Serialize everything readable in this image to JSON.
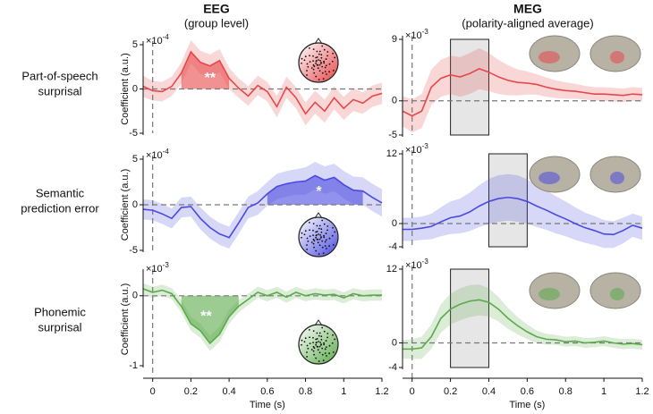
{
  "figure": {
    "columns": [
      {
        "title": "EEG",
        "subtitle": "(group level)"
      },
      {
        "title": "MEG",
        "subtitle": "(polarity-aligned average)"
      }
    ],
    "rows": [
      [
        "Part-of-speech",
        "surprisal"
      ],
      [
        "Semantic",
        "prediction error"
      ],
      [
        "Phonemic",
        "surprisal"
      ]
    ]
  },
  "chart_data": [
    {
      "type": "line",
      "ylabel": "Coefficient (a.u.)",
      "y_multiplier": {
        "base": "×10",
        "exponent": "-4"
      },
      "x": [
        -0.05,
        0,
        0.05,
        0.1,
        0.15,
        0.2,
        0.25,
        0.3,
        0.35,
        0.4,
        0.45,
        0.5,
        0.55,
        0.6,
        0.65,
        0.7,
        0.75,
        0.8,
        0.85,
        0.9,
        0.95,
        1.0,
        1.05,
        1.1,
        1.15,
        1.2
      ],
      "series": [
        {
          "color": "#e8474a",
          "values": [
            0.3,
            -0.2,
            -0.3,
            0.3,
            1.8,
            4.2,
            3.0,
            2.6,
            3.2,
            1.2,
            0.1,
            -0.8,
            0.4,
            -0.3,
            -2.0,
            0.2,
            -1.0,
            -2.8,
            -1.5,
            -2.5,
            -1.0,
            -2.2,
            -1.2,
            -1.6,
            -0.8,
            -0.5
          ],
          "errors": [
            1.2,
            1.1,
            1.1,
            1.1,
            1.2,
            1.3,
            1.3,
            1.3,
            1.3,
            1.2,
            1.1,
            1.1,
            1.1,
            1.1,
            1.2,
            1.2,
            1.2,
            1.3,
            1.3,
            1.3,
            1.3,
            1.3,
            1.3,
            1.2,
            1.2,
            1.2
          ]
        }
      ],
      "xlim": [
        -0.05,
        1.2
      ],
      "ylim": [
        -5,
        5
      ],
      "yticks": [
        -5,
        0,
        5
      ],
      "zero_lines": true,
      "highlight": [
        0.15,
        0.42
      ],
      "annotations": [
        {
          "text": "**",
          "x": 0.3,
          "y": 1.2
        }
      ]
    },
    {
      "type": "line",
      "y_multiplier": {
        "base": "×10",
        "exponent": "-3"
      },
      "x": [
        -0.05,
        0,
        0.05,
        0.1,
        0.15,
        0.2,
        0.25,
        0.3,
        0.35,
        0.4,
        0.45,
        0.5,
        0.55,
        0.6,
        0.65,
        0.7,
        0.75,
        0.8,
        0.85,
        0.9,
        0.95,
        1.0,
        1.05,
        1.1,
        1.15,
        1.2
      ],
      "series": [
        {
          "color": "#e8474a",
          "values": [
            -1.5,
            -2.2,
            -1.5,
            2.0,
            3.3,
            3.8,
            3.5,
            4.0,
            4.7,
            4.2,
            3.5,
            3.0,
            2.7,
            2.6,
            2.4,
            2.0,
            1.7,
            1.5,
            1.4,
            1.2,
            1.0,
            1.0,
            0.9,
            0.8,
            1.0,
            0.9
          ],
          "errors": [
            2.2,
            2.4,
            2.5,
            2.6,
            2.7,
            2.8,
            2.9,
            3.0,
            3.0,
            2.8,
            2.5,
            2.2,
            1.9,
            1.7,
            1.5,
            1.4,
            1.3,
            1.2,
            1.1,
            1.0,
            1.0,
            1.0,
            1.0,
            1.0,
            1.0,
            1.0
          ]
        }
      ],
      "xlim": [
        -0.05,
        1.2
      ],
      "ylim": [
        -5,
        9
      ],
      "yticks": [
        -5,
        0,
        9
      ],
      "zero_lines": true,
      "window": [
        0.2,
        0.4
      ]
    },
    {
      "type": "line",
      "ylabel": "Coefficient (a.u.)",
      "y_multiplier": {
        "base": "×10",
        "exponent": "-4"
      },
      "x": [
        -0.05,
        0,
        0.05,
        0.1,
        0.15,
        0.2,
        0.25,
        0.3,
        0.35,
        0.4,
        0.45,
        0.5,
        0.55,
        0.6,
        0.65,
        0.7,
        0.75,
        0.8,
        0.85,
        0.9,
        0.95,
        1.0,
        1.05,
        1.1,
        1.15,
        1.2
      ],
      "series": [
        {
          "color": "#4a4ae0",
          "values": [
            -0.5,
            -0.6,
            -1.0,
            -1.5,
            -0.3,
            -0.2,
            -1.5,
            -2.5,
            -3.2,
            -3.6,
            -2.0,
            -0.3,
            0.2,
            1.2,
            2.0,
            2.3,
            2.5,
            2.6,
            3.2,
            2.7,
            3.0,
            2.2,
            1.6,
            1.5,
            0.8,
            0.2
          ],
          "errors": [
            1.1,
            1.1,
            1.1,
            1.1,
            1.1,
            1.1,
            1.2,
            1.2,
            1.2,
            1.2,
            1.2,
            1.2,
            1.3,
            1.3,
            1.4,
            1.4,
            1.4,
            1.5,
            1.5,
            1.5,
            1.5,
            1.5,
            1.5,
            1.5,
            1.5,
            1.5
          ]
        }
      ],
      "xlim": [
        -0.05,
        1.2
      ],
      "ylim": [
        -5,
        5
      ],
      "yticks": [
        -5,
        0,
        5
      ],
      "zero_lines": true,
      "highlight": [
        0.57,
        1.1
      ],
      "annotations": [
        {
          "text": "*",
          "x": 0.87,
          "y": 1.4
        }
      ]
    },
    {
      "type": "line",
      "y_multiplier": {
        "base": "×10",
        "exponent": "-3"
      },
      "x": [
        -0.05,
        0,
        0.05,
        0.1,
        0.15,
        0.2,
        0.25,
        0.3,
        0.35,
        0.4,
        0.45,
        0.5,
        0.55,
        0.6,
        0.65,
        0.7,
        0.75,
        0.8,
        0.85,
        0.9,
        0.95,
        1.0,
        1.05,
        1.1,
        1.15,
        1.2
      ],
      "series": [
        {
          "color": "#4a4ae0",
          "values": [
            -1.0,
            -1.0,
            -0.8,
            -0.5,
            0.3,
            1.0,
            1.3,
            2.0,
            3.0,
            3.8,
            4.3,
            4.5,
            4.3,
            3.8,
            3.0,
            2.3,
            1.5,
            0.8,
            0.0,
            -0.7,
            -1.2,
            -1.8,
            -1.9,
            -1.2,
            -0.3,
            -0.8
          ],
          "errors": [
            2.0,
            2.0,
            2.0,
            2.2,
            2.5,
            2.8,
            3.0,
            3.3,
            3.6,
            3.9,
            4.0,
            4.0,
            4.0,
            3.8,
            3.6,
            3.4,
            3.2,
            3.0,
            2.8,
            2.6,
            2.5,
            2.4,
            2.3,
            2.2,
            2.0,
            2.0
          ]
        }
      ],
      "xlim": [
        -0.05,
        1.2
      ],
      "ylim": [
        -4,
        12
      ],
      "yticks": [
        -4,
        0,
        12
      ],
      "zero_lines": true,
      "window": [
        0.4,
        0.6
      ]
    },
    {
      "type": "line",
      "ylabel": "Coefficient (a.u.)",
      "xlabel": "Time (s)",
      "y_multiplier": {
        "base": "×10",
        "exponent": "-3"
      },
      "x": [
        -0.05,
        0,
        0.05,
        0.1,
        0.15,
        0.2,
        0.25,
        0.3,
        0.35,
        0.4,
        0.45,
        0.5,
        0.55,
        0.6,
        0.65,
        0.7,
        0.75,
        0.8,
        0.85,
        0.9,
        0.95,
        1.0,
        1.05,
        1.1,
        1.15,
        1.2
      ],
      "series": [
        {
          "color": "#5aaa4a",
          "values": [
            0.1,
            0.05,
            0.08,
            0.03,
            -0.15,
            -0.4,
            -0.5,
            -0.68,
            -0.55,
            -0.3,
            -0.15,
            -0.05,
            0.05,
            0.0,
            0.05,
            -0.02,
            0.05,
            0.0,
            0.03,
            0.01,
            0.02,
            -0.03,
            0.03,
            0.0,
            0.01,
            0.01
          ],
          "errors": [
            0.08,
            0.08,
            0.08,
            0.08,
            0.09,
            0.1,
            0.1,
            0.11,
            0.11,
            0.1,
            0.09,
            0.08,
            0.08,
            0.08,
            0.08,
            0.08,
            0.08,
            0.08,
            0.08,
            0.08,
            0.08,
            0.08,
            0.08,
            0.08,
            0.08,
            0.08
          ]
        }
      ],
      "xlim": [
        -0.05,
        1.2
      ],
      "ylim": [
        -1,
        0.33
      ],
      "yticks": [
        -1,
        0
      ],
      "xticks": [
        0,
        0.2,
        0.4,
        0.6,
        0.8,
        1.0,
        1.2
      ],
      "zero_lines": true,
      "highlight": [
        0.12,
        0.48
      ],
      "annotations": [
        {
          "text": "**",
          "x": 0.28,
          "y": -0.3
        }
      ]
    },
    {
      "type": "line",
      "xlabel": "Time (s)",
      "y_multiplier": {
        "base": "×10",
        "exponent": "-3"
      },
      "x": [
        -0.05,
        0,
        0.05,
        0.1,
        0.15,
        0.2,
        0.25,
        0.3,
        0.35,
        0.4,
        0.45,
        0.5,
        0.55,
        0.6,
        0.65,
        0.7,
        0.75,
        0.8,
        0.85,
        0.9,
        0.95,
        1.0,
        1.05,
        1.1,
        1.15,
        1.2
      ],
      "series": [
        {
          "color": "#5aaa4a",
          "values": [
            -1.0,
            -1.0,
            -0.8,
            1.0,
            4.0,
            5.5,
            6.3,
            6.8,
            7.0,
            6.6,
            5.5,
            4.0,
            2.8,
            1.8,
            1.0,
            0.6,
            0.5,
            0.2,
            0.3,
            0.0,
            0.1,
            0.3,
            0.0,
            -0.2,
            -0.1,
            -0.3
          ],
          "errors": [
            1.5,
            1.6,
            1.8,
            2.0,
            2.3,
            2.5,
            2.6,
            2.6,
            2.5,
            2.3,
            2.0,
            1.7,
            1.4,
            1.2,
            1.0,
            0.9,
            0.8,
            0.8,
            0.8,
            0.8,
            0.8,
            0.8,
            0.8,
            0.8,
            0.8,
            0.8
          ]
        }
      ],
      "xlim": [
        -0.05,
        1.2
      ],
      "ylim": [
        -4,
        12
      ],
      "yticks": [
        -4,
        0,
        12
      ],
      "xticks": [
        0,
        0.2,
        0.4,
        0.6,
        0.8,
        1.0,
        1.2
      ],
      "zero_lines": true,
      "window": [
        0.2,
        0.4
      ]
    }
  ]
}
